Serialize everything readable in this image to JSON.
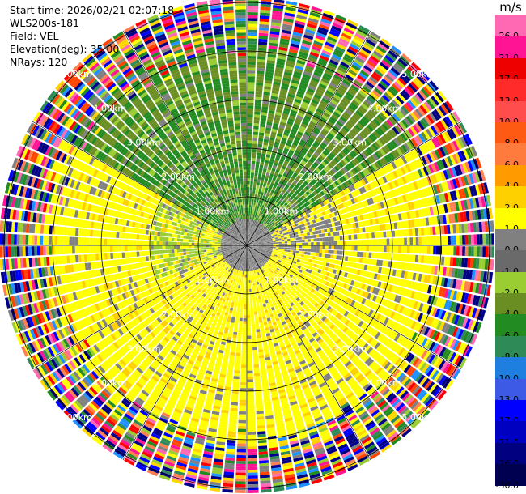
{
  "header": {
    "start_time": "Start time: 2026/02/21 02:07:18",
    "station": "WLS200s-181",
    "field": "Field: VEL",
    "elevation": "Elevation(deg): 35.00",
    "nrays": "NRays: 120"
  },
  "colorbar": {
    "unit": "m/s",
    "ticks": [
      "26.0",
      "21.0",
      "17.0",
      "13.0",
      "10.0",
      "8.0",
      "6.0",
      "4.0",
      "2.0",
      "1.0",
      "0.0",
      "-1.0",
      "-2.0",
      "-4.0",
      "-6.0",
      "-8.0",
      "-10.0",
      "-13.0",
      "-17.0",
      "-21.0",
      "-26.0",
      "-30.0"
    ],
    "colors": [
      "#ff3399",
      "#ff1493",
      "#e60000",
      "#ff2222",
      "#ff4444",
      "#ff5500",
      "#ff7733",
      "#ff9900",
      "#ffcc00",
      "#ffff00",
      "#ffff66",
      "#777777",
      "#999999",
      "#9acd32",
      "#6b8e23",
      "#228b22",
      "#2e8b57",
      "#1e90ff",
      "#4169e1",
      "#0000ff",
      "#0000cd",
      "#00008b",
      "#000066",
      "#1a1a50"
    ]
  },
  "chart_data": {
    "type": "heatmap",
    "projection": "polar PPI",
    "field": "VEL",
    "units": "m/s",
    "elevation_deg": 35.0,
    "n_rays": 120,
    "range_ring_labels": [
      "1.00km",
      "2.00km",
      "3.00km",
      "4.00km",
      "5.00km"
    ],
    "range_rings_km": [
      1,
      2,
      3,
      4,
      5
    ],
    "max_range_km": 5.1,
    "sectors": [
      {
        "from_deg": -60,
        "to_deg": 60,
        "dominant_velocity": -3.0,
        "note": "north: green (negative)"
      },
      {
        "from_deg": 60,
        "to_deg": 300,
        "dominant_velocity": 3.0,
        "note": "south: yellow (positive)"
      }
    ],
    "far_range_noise_km": 3.8
  }
}
